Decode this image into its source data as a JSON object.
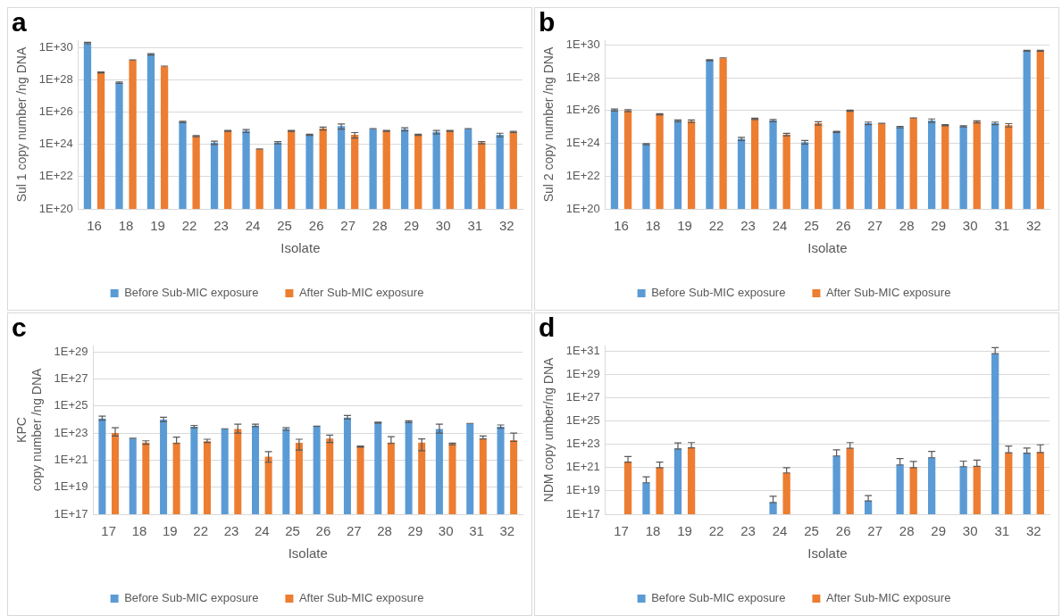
{
  "chart_data": [
    {
      "type": "bar",
      "title": "a",
      "xlabel": "Isolate",
      "ylabel": "Sul 1 copy number /ng DNA",
      "log": "y",
      "grid": "y",
      "legend": "bottom",
      "categories": [
        "16",
        "18",
        "19",
        "22",
        "23",
        "24",
        "25",
        "26",
        "27",
        "28",
        "29",
        "30",
        "31",
        "32"
      ],
      "ylim": [
        1e+20,
        3e+30
      ],
      "yticks": [
        {
          "value": 1e+20,
          "label": "1E+20"
        },
        {
          "value": 1e+22,
          "label": "1E+22"
        },
        {
          "value": 1e+24,
          "label": "1E+24"
        },
        {
          "value": 1e+26,
          "label": "1E+26"
        },
        {
          "value": 1e+28,
          "label": "1E+28"
        },
        {
          "value": 1e+30,
          "label": "1E+30"
        }
      ],
      "series": [
        {
          "name": "Before Sub-MIC exposure",
          "color": "#5b9bd5",
          "values": [
            2e+30,
            7e+27,
            4e+29,
            2.5e+25,
            1.3e+24,
            7e+24,
            1.3e+24,
            4e+24,
            1.4e+25,
            9e+24,
            9e+24,
            6e+24,
            9e+24,
            4e+24
          ],
          "errors": [
            2e+29,
            7e+26,
            4e+28,
            2.5e+24,
            3e+23,
            1.5e+24,
            2e+23,
            3e+23,
            5e+24,
            5e+23,
            2e+24,
            1.5e+24,
            5e+23,
            1e+24
          ]
        },
        {
          "name": "After Sub-MIC exposure",
          "color": "#ed7d31",
          "values": [
            3e+28,
            1.7e+29,
            7e+28,
            3.3e+24,
            7e+24,
            5e+23,
            7e+24,
            1e+25,
            4e+24,
            7e+24,
            4e+24,
            7e+24,
            1.3e+24,
            6e+24
          ],
          "errors": [
            2e+27,
            1e+28,
            4e+27,
            3e+23,
            5e+23,
            3e+22,
            5e+23,
            2e+24,
            1.5e+24,
            5e+23,
            3e+23,
            5e+23,
            2e+23,
            5e+23
          ]
        }
      ]
    },
    {
      "type": "bar",
      "title": "b",
      "xlabel": "Isolate",
      "ylabel": "Sul 2 copy number /ng DNA",
      "log": "y",
      "grid": "y",
      "legend": "bottom",
      "categories": [
        "16",
        "18",
        "19",
        "22",
        "23",
        "24",
        "25",
        "26",
        "27",
        "28",
        "29",
        "30",
        "31",
        "32"
      ],
      "ylim": [
        1e+20,
        2e+30
      ],
      "yticks": [
        {
          "value": 1e+20,
          "label": "1E+20"
        },
        {
          "value": 1e+22,
          "label": "1E+22"
        },
        {
          "value": 1e+24,
          "label": "1E+24"
        },
        {
          "value": 1e+26,
          "label": "1E+26"
        },
        {
          "value": 1e+28,
          "label": "1E+28"
        },
        {
          "value": 1e+30,
          "label": "1E+30"
        }
      ],
      "series": [
        {
          "name": "Before Sub-MIC exposure",
          "color": "#5b9bd5",
          "values": [
            1.1e+26,
            9e+23,
            2.4e+25,
            1.2e+29,
            1.9e+24,
            2.5e+25,
            1.2e+24,
            5e+24,
            1.7e+25,
            1e+25,
            2.5e+25,
            1.1e+25,
            1.7e+25,
            4.5e+29
          ],
          "errors": [
            1.5e+25,
            8e+22,
            3e+24,
            1e+28,
            4e+23,
            4e+24,
            3e+23,
            4e+23,
            3e+24,
            1e+24,
            6e+24,
            1e+24,
            3e+24,
            3e+28
          ]
        },
        {
          "name": "After Sub-MIC exposure",
          "color": "#ed7d31",
          "values": [
            1e+26,
            6e+25,
            2.3e+25,
            1.6e+29,
            3.2e+25,
            3.5e+24,
            1.7e+25,
            1e+26,
            1.6e+25,
            3.4e+25,
            1.3e+25,
            2.1e+25,
            1.3e+25,
            4.5e+29
          ],
          "errors": [
            1.5e+25,
            5e+24,
            4e+24,
            8e+27,
            3e+24,
            6e+23,
            4e+24,
            8e+24,
            1e+24,
            2e+24,
            1e+24,
            3e+24,
            3e+24,
            3e+28
          ]
        }
      ]
    },
    {
      "type": "bar",
      "title": "c",
      "xlabel": "Isolate",
      "ylabel": "KPC\ncopy number /ng DNA",
      "log": "y",
      "grid": "y",
      "legend": "bottom",
      "categories": [
        "17",
        "18",
        "19",
        "22",
        "23",
        "24",
        "25",
        "26",
        "27",
        "28",
        "29",
        "30",
        "31",
        "32"
      ],
      "ylim": [
        1e+17,
        3e+29
      ],
      "yticks": [
        {
          "value": 1e+17,
          "label": "1E+17"
        },
        {
          "value": 1e+19,
          "label": "1E+19"
        },
        {
          "value": 1e+21,
          "label": "1E+21"
        },
        {
          "value": 1e+23,
          "label": "1E+23"
        },
        {
          "value": 1e+25,
          "label": "1E+25"
        },
        {
          "value": 1e+27,
          "label": "1E+27"
        },
        {
          "value": 1e+29,
          "label": "1E+29"
        }
      ],
      "series": [
        {
          "name": "Before Sub-MIC exposure",
          "color": "#5b9bd5",
          "values": [
            1.2e+24,
            4e+22,
            1e+24,
            3e+23,
            2e+23,
            3.5e+23,
            2e+23,
            3e+23,
            1.4e+24,
            6e+23,
            7e+23,
            2e+23,
            5e+23,
            3e+23
          ],
          "errors": [
            [
              9e+23,
              1.8e+24
            ],
            [
              3.8e+22,
              4.2e+22
            ],
            [
              7e+23,
              1.5e+24
            ],
            [
              2.5e+23,
              3.7e+23
            ],
            [
              1.9e+23,
              2.1e+23
            ],
            [
              3e+23,
              4.5e+23
            ],
            [
              1.6e+23,
              2.5e+23
            ],
            [
              2.8e+23,
              3.2e+23
            ],
            [
              1.1e+24,
              2e+24
            ],
            [
              5.5e+23,
              6.5e+23
            ],
            [
              6e+23,
              8e+23
            ],
            [
              1e+23,
              4.5e+23
            ],
            [
              4.8e+23,
              5.2e+23
            ],
            [
              2.3e+23,
              4e+23
            ]
          ]
        },
        {
          "name": "After Sub-MIC exposure",
          "color": "#ed7d31",
          "values": [
            1e+23,
            2e+22,
            2e+22,
            2.5e+22,
            2e+23,
            1.8e+21,
            1.9e+22,
            4e+22,
            1e+22,
            2e+22,
            2e+22,
            1.6e+22,
            4e+22,
            3e+22
          ],
          "errors": [
            [
              6e+22,
              2.5e+23
            ],
            [
              1.5e+22,
              2.7e+22
            ],
            [
              1.7e+22,
              5e+22
            ],
            [
              2e+22,
              3.5e+22
            ],
            [
              1e+23,
              4.5e+23
            ],
            [
              7e+20,
              4.3e+21
            ],
            [
              5.6e+21,
              3.5e+22
            ],
            [
              2e+22,
              7e+22
            ],
            [
              9e+21,
              1.1e+22
            ],
            [
              1.7e+22,
              5.5e+22
            ],
            [
              5e+21,
              3.7e+22
            ],
            [
              1.4e+22,
              1.8e+22
            ],
            [
              3.7e+22,
              6e+22
            ],
            [
              2.4e+22,
              1e+23
            ]
          ]
        }
      ]
    },
    {
      "type": "bar",
      "title": "d",
      "xlabel": "Isolate",
      "ylabel": "NDM copy umber/ng DNA",
      "log": "y",
      "grid": "y",
      "legend": "bottom",
      "categories": [
        "17",
        "18",
        "19",
        "22",
        "23",
        "24",
        "25",
        "26",
        "27",
        "28",
        "29",
        "30",
        "31",
        "32"
      ],
      "ylim": [
        1e+17,
        3e+31
      ],
      "yticks": [
        {
          "value": 1e+17,
          "label": "1E+17"
        },
        {
          "value": 1e+19,
          "label": "1E+19"
        },
        {
          "value": 1e+21,
          "label": "1E+21"
        },
        {
          "value": 1e+23,
          "label": "1E+23"
        },
        {
          "value": 1e+25,
          "label": "1E+25"
        },
        {
          "value": 1e+27,
          "label": "1E+27"
        },
        {
          "value": 1e+29,
          "label": "1E+29"
        },
        {
          "value": 1e+31,
          "label": "1E+31"
        }
      ],
      "series": [
        {
          "name": "Before Sub-MIC exposure",
          "color": "#5b9bd5",
          "values": [
            null,
            5e+19,
            4e+22,
            null,
            null,
            1e+18,
            null,
            1e+22,
            1.4e+18,
            1.7e+21,
            7e+21,
            1.2e+21,
            6e+30,
            1.7e+22
          ],
          "errors": [
            null,
            [
              5e+19,
              1.6e+20
            ],
            [
              4e+22,
              1.3e+23
            ],
            null,
            null,
            [
              1e+18,
              3.5e+18
            ],
            null,
            [
              1e+22,
              3.3e+22
            ],
            [
              1.4e+18,
              4e+18
            ],
            [
              1.7e+21,
              6e+21
            ],
            [
              7e+21,
              2.5e+22
            ],
            [
              1.2e+21,
              3.6e+21
            ],
            [
              6e+30,
              2e+31
            ],
            [
              1.7e+22,
              4.8e+22
            ]
          ]
        },
        {
          "name": "After Sub-MIC exposure",
          "color": "#ed7d31",
          "values": [
            3e+21,
            1e+21,
            5e+22,
            null,
            null,
            3.5e+20,
            null,
            4.5e+22,
            null,
            1e+21,
            null,
            1.3e+21,
            1.9e+22,
            2e+22
          ],
          "errors": [
            [
              3e+21,
              9e+21
            ],
            [
              1e+21,
              3e+21
            ],
            [
              5e+22,
              1.4e+23
            ],
            null,
            null,
            [
              3.5e+20,
              1e+21
            ],
            null,
            [
              4.5e+22,
              1.4e+23
            ],
            null,
            [
              1e+21,
              3.4e+21
            ],
            null,
            [
              1.3e+21,
              4.4e+21
            ],
            [
              1.9e+22,
              7e+22
            ],
            [
              2e+22,
              9e+22
            ]
          ]
        }
      ]
    }
  ]
}
